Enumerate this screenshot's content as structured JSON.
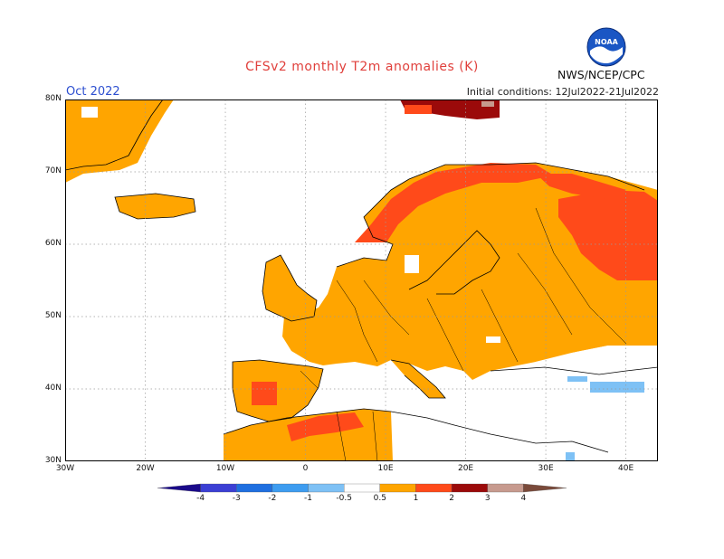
{
  "title": "CFSv2 monthly T2m anomalies (K)",
  "valid_month": "Oct 2022",
  "initial_conditions": "Initial conditions: 12Jul2022-21Jul2022",
  "agency": "NWS/NCEP/CPC",
  "logo_text": "NOAA",
  "axes": {
    "lat_labels": [
      "80N",
      "70N",
      "60N",
      "50N",
      "40N",
      "30N"
    ],
    "lon_labels": [
      "30W",
      "20W",
      "10W",
      "0",
      "10E",
      "20E",
      "30E",
      "40E"
    ],
    "lat_values": [
      80,
      70,
      60,
      50,
      40,
      30
    ],
    "lon_values": [
      -30,
      -20,
      -10,
      0,
      10,
      20,
      30,
      40
    ],
    "lon_range": [
      -30,
      44
    ],
    "lat_range": [
      30,
      80
    ],
    "grid": true
  },
  "colorbar": {
    "labels": [
      "-4",
      "-3",
      "-2",
      "-1",
      "-0.5",
      "0.5",
      "1",
      "2",
      "3",
      "4"
    ],
    "colors": [
      "#1a0a8a",
      "#3b3fd4",
      "#1f6fe0",
      "#3d9cf0",
      "#7ec1f5",
      "#ffffff",
      "#ffa500",
      "#ff4a1a",
      "#9b0a0a",
      "#c79a8e",
      "#7a4a3a"
    ]
  },
  "regions": [
    {
      "name": "greenland-east-coast",
      "bin": "0.5-1",
      "color": "#ffa500"
    },
    {
      "name": "iceland",
      "bin": "0.5-1",
      "color": "#ffa500"
    },
    {
      "name": "british-isles",
      "bin": "0.5-1",
      "color": "#ffa500"
    },
    {
      "name": "iberia",
      "bin": "0.5-1",
      "color": "#ffa500"
    },
    {
      "name": "central-spain-hotspot",
      "bin": "1-2",
      "color": "#ff4a1a"
    },
    {
      "name": "central-europe",
      "bin": "0.5-1",
      "color": "#ffa500"
    },
    {
      "name": "scandinavia",
      "bin": "0.5-1",
      "color": "#ffa500"
    },
    {
      "name": "norway-coast",
      "bin": "1-2",
      "color": "#ff4a1a"
    },
    {
      "name": "eastern-europe-russia",
      "bin": "0.5-1",
      "color": "#ffa500"
    },
    {
      "name": "western-russia-hotspot",
      "bin": "1-2",
      "color": "#ff4a1a"
    },
    {
      "name": "svalbard",
      "bin": "2-3",
      "color": "#9b0a0a"
    },
    {
      "name": "north-africa",
      "bin": "0.5-1",
      "color": "#ffa500"
    },
    {
      "name": "morocco-algeria-hotspot",
      "bin": "1-2",
      "color": "#ff4a1a"
    },
    {
      "name": "caucasus-turkey",
      "bin": "-1 to -0.5",
      "color": "#7ec1f5"
    }
  ]
}
